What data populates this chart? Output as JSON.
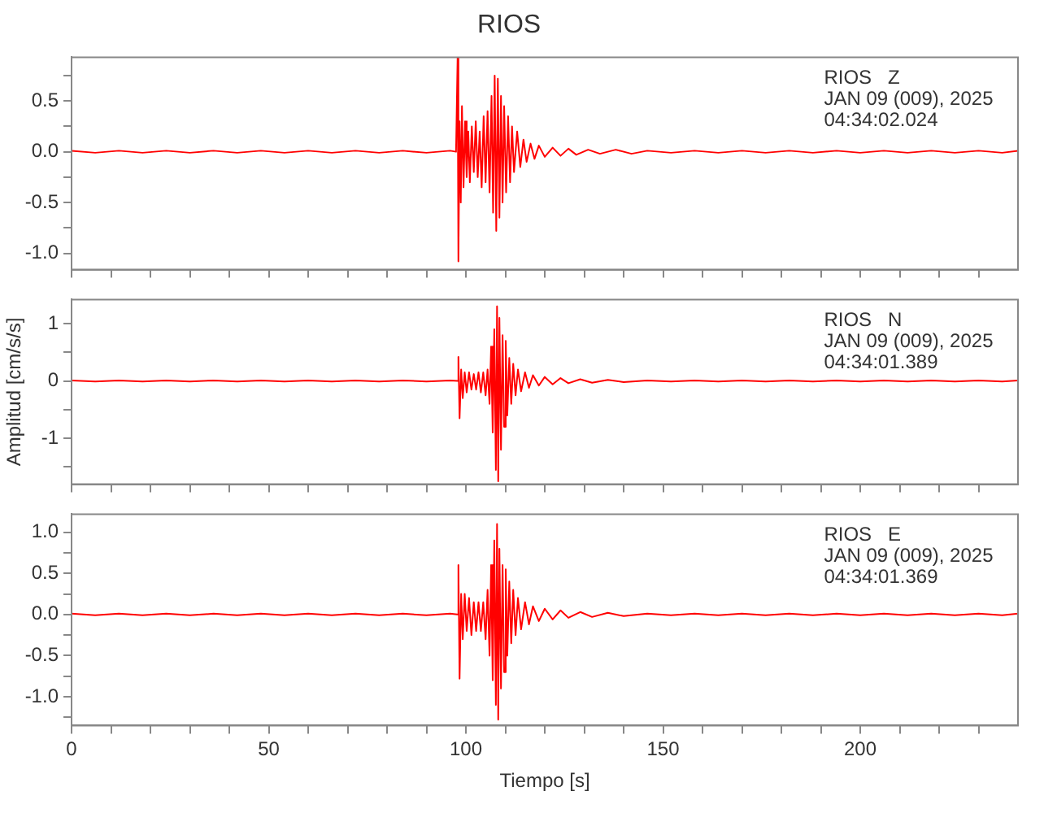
{
  "chart_data": [
    {
      "type": "line",
      "title": "RIOS",
      "annotations": [
        "RIOS   Z",
        "JAN 09 (009), 2025",
        "04:34:02.024"
      ],
      "tick_labels": "y",
      "marker": "none",
      "xlim": [
        0,
        240
      ],
      "xticks": [
        0,
        {
          "value": 10,
          "label": null
        },
        {
          "value": 20,
          "label": null
        },
        {
          "value": 30,
          "label": null
        },
        {
          "value": 40,
          "label": null
        },
        50,
        {
          "value": 60,
          "label": null
        },
        {
          "value": 70,
          "label": null
        },
        {
          "value": 80,
          "label": null
        },
        {
          "value": 90,
          "label": null
        },
        100,
        {
          "value": 110,
          "label": null
        },
        {
          "value": 120,
          "label": null
        },
        {
          "value": 130,
          "label": null
        },
        {
          "value": 140,
          "label": null
        },
        150,
        {
          "value": 160,
          "label": null
        },
        {
          "value": 170,
          "label": null
        },
        {
          "value": 180,
          "label": null
        },
        {
          "value": 190,
          "label": null
        },
        200,
        {
          "value": 210,
          "label": null
        },
        {
          "value": 220,
          "label": null
        },
        {
          "value": 230,
          "label": null
        }
      ],
      "ylim": [
        -1.16,
        0.93
      ],
      "yticks": [
        {
          "value": -1,
          "label": "-1.0"
        },
        {
          "value": -0.75,
          "label": null
        },
        {
          "value": -0.5,
          "label": "-0.5"
        },
        {
          "value": -0.25,
          "label": null
        },
        {
          "value": 0,
          "label": "0.0"
        },
        {
          "value": 0.25,
          "label": null
        },
        {
          "value": 0.5,
          "label": "0.5"
        },
        {
          "value": 0.75,
          "label": null
        }
      ],
      "series": [
        {
          "color": "#ff0000",
          "x": [
            0,
            6,
            12,
            18,
            24,
            30,
            36,
            42,
            48,
            54,
            60,
            66,
            72,
            78,
            84,
            90,
            96,
            97.5,
            97.9,
            98.1,
            98.4,
            98.7,
            99.0,
            99.4,
            99.8,
            100.2,
            100.6,
            101,
            101.5,
            102,
            102.5,
            103,
            103.5,
            104,
            104.5,
            105,
            105.5,
            106,
            106.5,
            106.9,
            107.3,
            107.7,
            108.1,
            108.5,
            108.9,
            109.3,
            109.7,
            110.2,
            110.7,
            111.2,
            111.7,
            112.2,
            113,
            113.8,
            114.6,
            115.4,
            116.4,
            117.4,
            118.5,
            120,
            122,
            124,
            126,
            128,
            131,
            134,
            138,
            142,
            146,
            152,
            158,
            164,
            170,
            176,
            182,
            188,
            194,
            200,
            206,
            212,
            218,
            224,
            230,
            236,
            240
          ],
          "values": [
            0.01,
            -0.01,
            0.01,
            -0.01,
            0.01,
            -0.01,
            0.01,
            -0.01,
            0.01,
            -0.01,
            0.01,
            -0.01,
            0.01,
            -0.01,
            0.01,
            -0.01,
            0.01,
            0,
            0.93,
            -1.08,
            0.3,
            -0.5,
            0.45,
            -0.35,
            0.3,
            -0.25,
            0.2,
            -0.3,
            0.25,
            -0.2,
            0.3,
            -0.25,
            0.2,
            -0.35,
            0.35,
            -0.3,
            0.4,
            -0.4,
            0.55,
            -0.6,
            0.75,
            -0.78,
            0.72,
            -0.65,
            0.55,
            -0.5,
            0.45,
            -0.4,
            0.35,
            -0.3,
            0.25,
            -0.2,
            0.2,
            -0.15,
            0.12,
            -0.1,
            0.08,
            -0.07,
            0.06,
            -0.05,
            0.04,
            -0.04,
            0.03,
            -0.03,
            0.02,
            -0.02,
            0.02,
            -0.02,
            0.01,
            -0.01,
            0.01,
            -0.01,
            0.01,
            -0.01,
            0.01,
            -0.01,
            0.01,
            -0.01,
            0.01,
            -0.01,
            0.01,
            -0.01,
            0.01,
            -0.01,
            0.01
          ]
        }
      ]
    },
    {
      "type": "line",
      "ylabel": "Amplitud [cm/s/s]",
      "annotations": [
        "RIOS   N",
        "JAN 09 (009), 2025",
        "04:34:01.389"
      ],
      "tick_labels": "y",
      "marker": "none",
      "xlim": [
        0,
        240
      ],
      "xticks": [
        0,
        {
          "value": 10,
          "label": null
        },
        {
          "value": 20,
          "label": null
        },
        {
          "value": 30,
          "label": null
        },
        {
          "value": 40,
          "label": null
        },
        50,
        {
          "value": 60,
          "label": null
        },
        {
          "value": 70,
          "label": null
        },
        {
          "value": 80,
          "label": null
        },
        {
          "value": 90,
          "label": null
        },
        100,
        {
          "value": 110,
          "label": null
        },
        {
          "value": 120,
          "label": null
        },
        {
          "value": 130,
          "label": null
        },
        {
          "value": 140,
          "label": null
        },
        150,
        {
          "value": 160,
          "label": null
        },
        {
          "value": 170,
          "label": null
        },
        {
          "value": 180,
          "label": null
        },
        {
          "value": 190,
          "label": null
        },
        200,
        {
          "value": 210,
          "label": null
        },
        {
          "value": 220,
          "label": null
        },
        {
          "value": 230,
          "label": null
        }
      ],
      "ylim": [
        -1.8,
        1.42
      ],
      "yticks": [
        {
          "value": -1.5,
          "label": null
        },
        -1,
        {
          "value": -0.5,
          "label": null
        },
        0,
        {
          "value": 0.5,
          "label": null
        },
        1
      ],
      "series": [
        {
          "color": "#ff0000",
          "x": [
            0,
            6,
            12,
            18,
            24,
            30,
            36,
            42,
            48,
            54,
            60,
            66,
            72,
            78,
            84,
            90,
            96,
            97.8,
            98.1,
            98.4,
            98.8,
            99.2,
            99.7,
            100.2,
            100.8,
            101.4,
            102,
            102.6,
            103.2,
            103.8,
            104.4,
            105,
            105.5,
            106,
            106.4,
            106.8,
            107.2,
            107.6,
            107.9,
            108.2,
            108.5,
            108.9,
            109.3,
            109.7,
            110.1,
            110.5,
            111,
            111.5,
            112,
            112.6,
            113.2,
            114,
            115,
            116,
            117,
            118.5,
            120,
            122,
            124,
            126,
            129,
            132,
            136,
            140,
            146,
            152,
            158,
            164,
            170,
            176,
            182,
            188,
            194,
            200,
            206,
            212,
            218,
            224,
            230,
            236,
            240
          ],
          "values": [
            0.01,
            -0.01,
            0.01,
            -0.01,
            0.01,
            -0.01,
            0.01,
            -0.01,
            0.01,
            -0.01,
            0.01,
            -0.01,
            0.01,
            -0.01,
            0.01,
            -0.01,
            0.01,
            0,
            0.42,
            -0.65,
            0.2,
            -0.3,
            0.15,
            -0.2,
            0.15,
            -0.15,
            0.12,
            -0.15,
            0.15,
            -0.2,
            0.15,
            -0.25,
            0.2,
            -0.4,
            0.6,
            -0.9,
            0.9,
            -1.55,
            1.3,
            -1.75,
            1.1,
            -1.2,
            0.8,
            -0.8,
            0.7,
            -0.6,
            0.4,
            -0.4,
            0.3,
            -0.25,
            0.2,
            -0.18,
            0.15,
            -0.12,
            0.1,
            -0.08,
            0.07,
            -0.06,
            0.05,
            -0.04,
            0.03,
            -0.03,
            0.02,
            -0.02,
            0.01,
            -0.01,
            0.01,
            -0.01,
            0.01,
            -0.01,
            0.01,
            -0.01,
            0.01,
            -0.01,
            0.01,
            -0.01,
            0.01,
            -0.01,
            0.01,
            -0.01,
            0.01
          ]
        }
      ]
    },
    {
      "type": "line",
      "xlabel": "Tiempo [s]",
      "annotations": [
        "RIOS   E",
        "JAN 09 (009), 2025",
        "04:34:01.369"
      ],
      "marker": "none",
      "xlim": [
        0,
        240
      ],
      "xticks": [
        0,
        {
          "value": 10,
          "label": null
        },
        {
          "value": 20,
          "label": null
        },
        {
          "value": 30,
          "label": null
        },
        {
          "value": 40,
          "label": null
        },
        50,
        {
          "value": 60,
          "label": null
        },
        {
          "value": 70,
          "label": null
        },
        {
          "value": 80,
          "label": null
        },
        {
          "value": 90,
          "label": null
        },
        100,
        {
          "value": 110,
          "label": null
        },
        {
          "value": 120,
          "label": null
        },
        {
          "value": 130,
          "label": null
        },
        {
          "value": 140,
          "label": null
        },
        150,
        {
          "value": 160,
          "label": null
        },
        {
          "value": 170,
          "label": null
        },
        {
          "value": 180,
          "label": null
        },
        {
          "value": 190,
          "label": null
        },
        200,
        {
          "value": 210,
          "label": null
        },
        {
          "value": 220,
          "label": null
        },
        {
          "value": 230,
          "label": null
        }
      ],
      "ylim": [
        -1.35,
        1.22
      ],
      "yticks": [
        {
          "value": -1.25,
          "label": null
        },
        {
          "value": -1,
          "label": "-1.0"
        },
        {
          "value": -0.75,
          "label": null
        },
        {
          "value": -0.5,
          "label": "-0.5"
        },
        {
          "value": -0.25,
          "label": null
        },
        {
          "value": 0,
          "label": "0.0"
        },
        {
          "value": 0.25,
          "label": null
        },
        {
          "value": 0.5,
          "label": "0.5"
        },
        {
          "value": 0.75,
          "label": null
        },
        {
          "value": 1,
          "label": "1.0"
        }
      ],
      "series": [
        {
          "color": "#ff0000",
          "x": [
            0,
            6,
            12,
            18,
            24,
            30,
            36,
            42,
            48,
            54,
            60,
            66,
            72,
            78,
            84,
            90,
            96,
            97.8,
            98.1,
            98.4,
            98.8,
            99.2,
            99.7,
            100.2,
            100.8,
            101.4,
            102,
            102.6,
            103.2,
            103.8,
            104.4,
            105,
            105.5,
            106,
            106.4,
            106.8,
            107.2,
            107.6,
            107.9,
            108.2,
            108.5,
            108.9,
            109.3,
            109.7,
            110.1,
            110.5,
            111,
            111.5,
            112,
            112.6,
            113.2,
            114,
            115,
            116,
            117,
            118.5,
            120,
            122,
            124,
            126,
            129,
            132,
            136,
            140,
            146,
            152,
            158,
            164,
            170,
            176,
            182,
            188,
            194,
            200,
            206,
            212,
            218,
            224,
            230,
            236,
            240
          ],
          "values": [
            0.01,
            -0.01,
            0.01,
            -0.01,
            0.01,
            -0.01,
            0.01,
            -0.01,
            0.01,
            -0.01,
            0.01,
            -0.01,
            0.01,
            -0.01,
            0.01,
            -0.01,
            0.01,
            0,
            0.6,
            -0.78,
            0.25,
            -0.3,
            0.25,
            -0.2,
            0.2,
            -0.25,
            0.15,
            -0.2,
            0.15,
            -0.2,
            0.15,
            -0.3,
            0.3,
            -0.5,
            0.6,
            -0.8,
            0.9,
            -1.1,
            1.1,
            -1.28,
            0.8,
            -0.9,
            0.6,
            -0.7,
            0.55,
            -0.5,
            0.4,
            -0.35,
            0.3,
            -0.25,
            0.2,
            -0.18,
            0.15,
            -0.12,
            0.1,
            -0.08,
            0.07,
            -0.06,
            0.05,
            -0.04,
            0.03,
            -0.03,
            0.02,
            -0.02,
            0.01,
            -0.01,
            0.01,
            -0.01,
            0.01,
            -0.01,
            0.01,
            -0.01,
            0.01,
            -0.01,
            0.01,
            -0.01,
            0.01,
            -0.01,
            0.01,
            -0.01,
            0.01
          ]
        }
      ]
    }
  ]
}
